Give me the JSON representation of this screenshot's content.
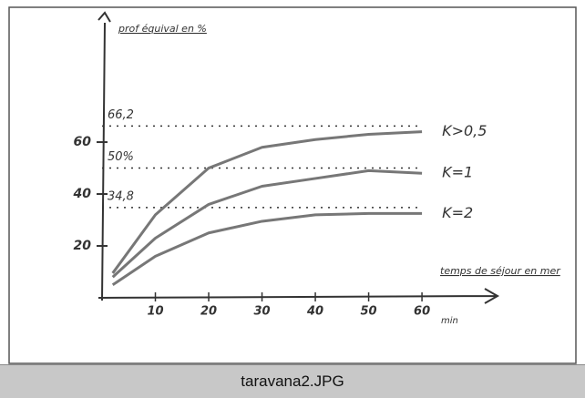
{
  "chart_data": {
    "type": "line",
    "y_label": "prof équival en %",
    "x_label": "temps de séjour en mer",
    "x_unit": "min",
    "x": [
      2,
      10,
      20,
      30,
      40,
      50,
      60
    ],
    "series": [
      {
        "name": "K>0,5",
        "color": "#777777",
        "values": [
          9.5,
          32,
          50,
          58,
          61,
          63,
          64
        ]
      },
      {
        "name": "K=1",
        "color": "#777777",
        "values": [
          8,
          23,
          36,
          43,
          46,
          49,
          48
        ]
      },
      {
        "name": "K=2",
        "color": "#777777",
        "values": [
          5,
          16,
          25,
          29.5,
          32,
          32.5,
          32.5
        ]
      }
    ],
    "reference_lines": [
      {
        "value": 66.2,
        "label": "66,2"
      },
      {
        "value": 50,
        "label": "50%"
      },
      {
        "value": 34.8,
        "label": "34,8"
      }
    ],
    "xlim": [
      0,
      74
    ],
    "ylim": [
      0,
      106
    ],
    "xticks": [
      10,
      20,
      30,
      40,
      50,
      60
    ],
    "yticks": [
      20,
      40,
      60
    ]
  },
  "caption": "taravana2.JPG"
}
